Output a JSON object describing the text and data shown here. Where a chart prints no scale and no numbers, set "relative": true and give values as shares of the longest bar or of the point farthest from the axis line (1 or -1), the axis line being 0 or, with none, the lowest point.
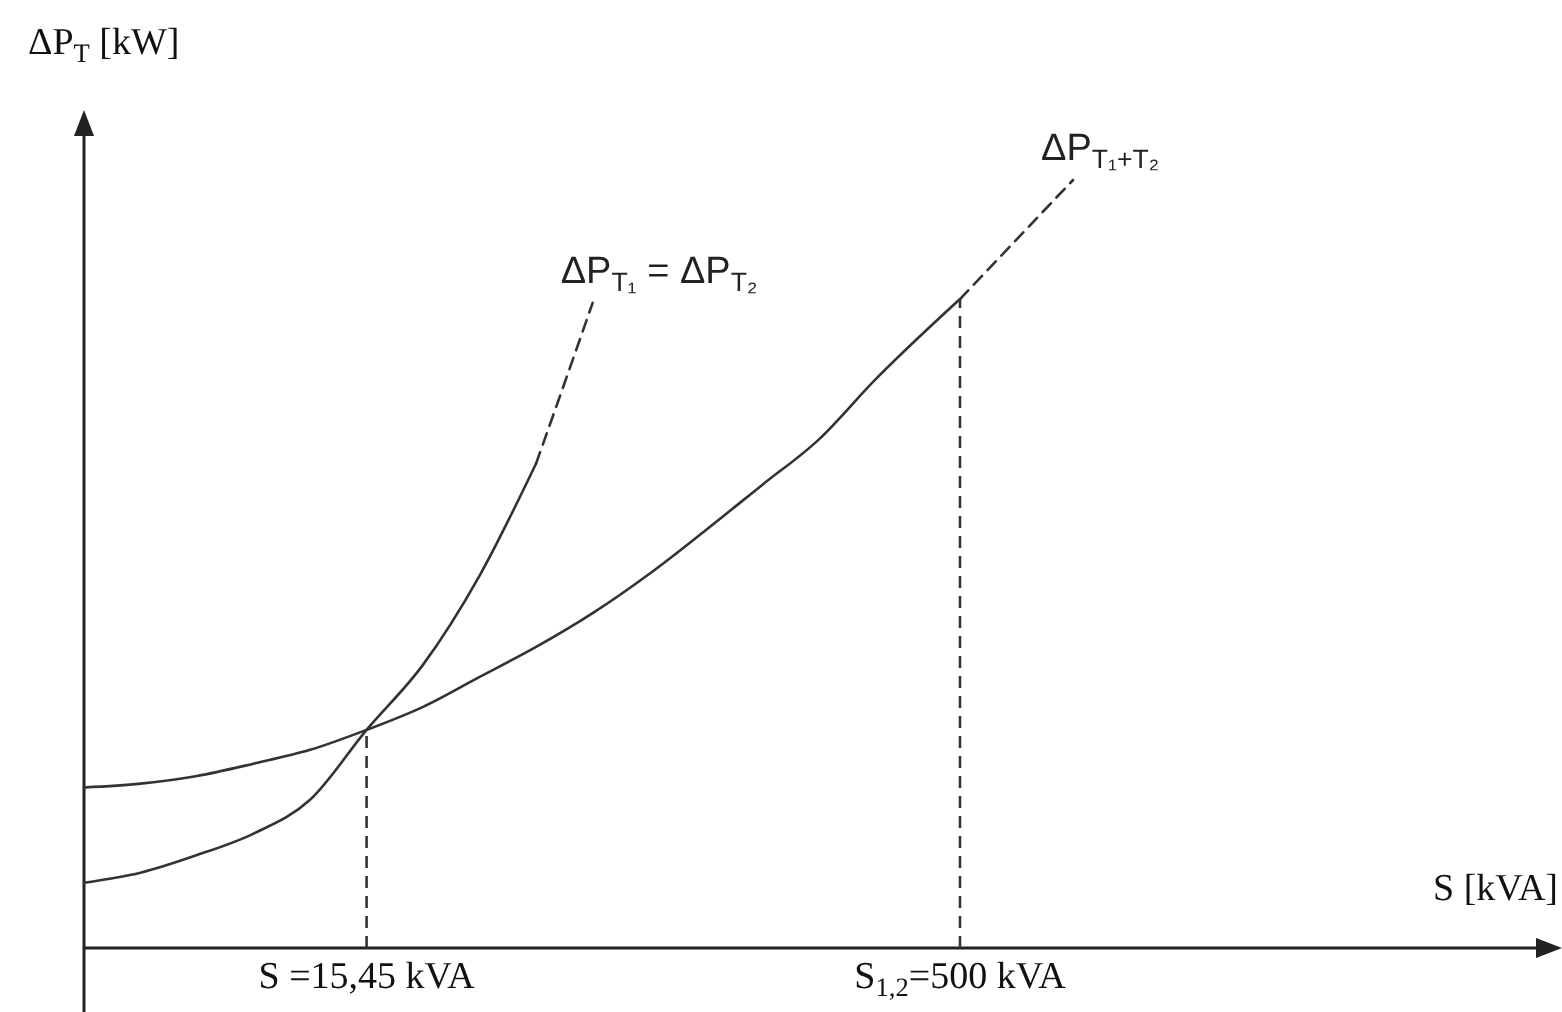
{
  "chart_data": {
    "type": "line",
    "relative": true,
    "xlabel": "S [kVA]",
    "ylabel": "ΔP$_{T}$ [kW]",
    "categories": [
      null,
      null,
      null,
      null,
      null,
      null,
      null,
      null,
      null,
      null,
      "S =15,45 kVA",
      null,
      null,
      null,
      null,
      null,
      null,
      null,
      null,
      null,
      null,
      null,
      null,
      null,
      null,
      null,
      null,
      null,
      null,
      null,
      null,
      "S$_{1,2}$=500 kVA",
      null,
      null,
      null,
      null,
      null,
      null,
      null,
      null,
      null,
      null,
      null,
      null,
      null,
      null,
      null,
      null,
      null,
      null,
      null,
      null
    ],
    "series": [
      {
        "color": "#333333",
        "line_style": "solid",
        "values": [
          0.085,
          null,
          0.098,
          null,
          0.121,
          null,
          0.149,
          null,
          0.193,
          null,
          0.284,
          null,
          0.369,
          null,
          0.485,
          null,
          0.631,
          null,
          null,
          null,
          null,
          null,
          null,
          null,
          null,
          null,
          null,
          null,
          null,
          null,
          null,
          null,
          null,
          null,
          null,
          null,
          null,
          null,
          null,
          null,
          null,
          null,
          null,
          null,
          null,
          null,
          null,
          null,
          null,
          null,
          null,
          null
        ]
      },
      {
        "name": "ΔP$_{T₁}$ = ΔP$_{T₂}$",
        "color": "#333333",
        "line_style": "dashed",
        "values": [
          null,
          null,
          null,
          null,
          null,
          null,
          null,
          null,
          null,
          null,
          null,
          null,
          null,
          null,
          null,
          null,
          0.631,
          0.735,
          0.84,
          null,
          null,
          null,
          null,
          null,
          null,
          null,
          null,
          null,
          null,
          null,
          null,
          null,
          null,
          null,
          null,
          null,
          null,
          null,
          null,
          null,
          null,
          null,
          null,
          null,
          null,
          null,
          null,
          null,
          null,
          null,
          null,
          null
        ]
      },
      {
        "color": "#333333",
        "line_style": "solid",
        "values": [
          0.209,
          null,
          0.214,
          null,
          0.224,
          null,
          0.24,
          null,
          0.258,
          null,
          0.284,
          null,
          0.314,
          null,
          0.353,
          null,
          0.392,
          null,
          0.436,
          null,
          0.487,
          null,
          0.544,
          null,
          0.603,
          null,
          0.662,
          null,
          0.74,
          null,
          null,
          0.845,
          null,
          null,
          null,
          null,
          null,
          null,
          null,
          null,
          null,
          null,
          null,
          null,
          null,
          null,
          null,
          null,
          null,
          null,
          null,
          null
        ]
      },
      {
        "name": "ΔP$_{T₁+T₂}$",
        "color": "#333333",
        "line_style": "dashed",
        "values": [
          null,
          null,
          null,
          null,
          null,
          null,
          null,
          null,
          null,
          null,
          null,
          null,
          null,
          null,
          null,
          null,
          null,
          null,
          null,
          null,
          null,
          null,
          null,
          null,
          null,
          null,
          null,
          null,
          null,
          null,
          null,
          0.845,
          null,
          null,
          null,
          1,
          null,
          null,
          null,
          null,
          null,
          null,
          null,
          null,
          null,
          null,
          null,
          null,
          null,
          null,
          null,
          null
        ]
      }
    ],
    "ref_lines": [
      {
        "axis": "x",
        "value": "S =15,45 kVA",
        "line_style": "dashed",
        "color": "#333333"
      },
      {
        "axis": "x",
        "value": "S$_{1,2}$=500 kVA",
        "line_style": "dashed",
        "color": "#333333"
      }
    ]
  }
}
